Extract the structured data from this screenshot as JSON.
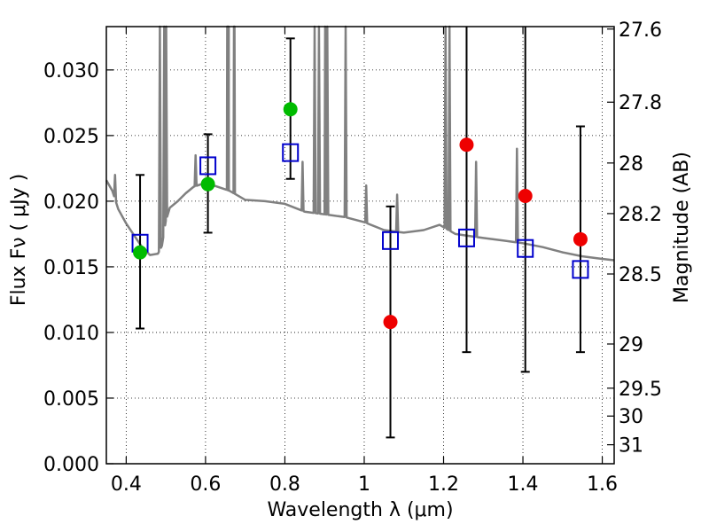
{
  "chart_data": {
    "type": "scatter",
    "xlabel": "Wavelength  λ (μm)",
    "ylabel": "Flux  Fν  ( μJy )",
    "ylabel_right": "Magnitude (AB)",
    "xlim": [
      0.35,
      1.63
    ],
    "ylim": [
      0.0,
      0.0333
    ],
    "x_ticks": [
      0.4,
      0.6,
      0.8,
      1.0,
      1.2,
      1.4,
      1.6
    ],
    "x_tick_labels": [
      "0.4",
      "0.6",
      "0.8",
      "1",
      "1.2",
      "1.4",
      "1.6"
    ],
    "y_ticks": [
      0.0,
      0.005,
      0.01,
      0.015,
      0.02,
      0.025,
      0.03
    ],
    "y_tick_labels": [
      "0.000",
      "0.005",
      "0.010",
      "0.015",
      "0.020",
      "0.025",
      "0.030"
    ],
    "right_ticks": [
      {
        "label": "27.6",
        "mag": 27.6
      },
      {
        "label": "27.8",
        "mag": 27.8
      },
      {
        "label": "28",
        "mag": 28.0
      },
      {
        "label": "28.2",
        "mag": 28.2
      },
      {
        "label": "28.5",
        "mag": 28.5
      },
      {
        "label": "29",
        "mag": 29.0
      },
      {
        "label": "29.5",
        "mag": 29.5
      },
      {
        "label": "30",
        "mag": 30.0
      },
      {
        "label": "31",
        "mag": 31.0
      }
    ],
    "grid": true,
    "colors": {
      "model": "#808080",
      "model_points": "#0000cc",
      "detected": "#00bb00",
      "upper": "#ee0000",
      "errorbar": "#000000"
    },
    "series": [
      {
        "kind": "model_photometry",
        "points": [
          {
            "x": 0.435,
            "y": 0.0168
          },
          {
            "x": 0.606,
            "y": 0.0227
          },
          {
            "x": 0.814,
            "y": 0.0237
          },
          {
            "x": 1.066,
            "y": 0.017
          },
          {
            "x": 1.258,
            "y": 0.0172
          },
          {
            "x": 1.406,
            "y": 0.0164
          },
          {
            "x": 1.545,
            "y": 0.0148
          }
        ]
      },
      {
        "kind": "detections",
        "points": [
          {
            "x": 0.435,
            "y": 0.0161,
            "err_low": 0.0103,
            "err_high": 0.022
          },
          {
            "x": 0.606,
            "y": 0.0213,
            "err_low": 0.0176,
            "err_high": 0.0251
          },
          {
            "x": 0.814,
            "y": 0.027,
            "err_low": 0.0217,
            "err_high": 0.0324
          }
        ]
      },
      {
        "kind": "low_significance",
        "points": [
          {
            "x": 1.066,
            "y": 0.0108,
            "err_low": 0.002,
            "err_high": 0.0196
          },
          {
            "x": 1.258,
            "y": 0.0243,
            "err_low": 0.0085,
            "err_high": 0.0334
          },
          {
            "x": 1.406,
            "y": 0.0204,
            "err_low": 0.007,
            "err_high": 0.0334
          },
          {
            "x": 1.545,
            "y": 0.0171,
            "err_low": 0.0085,
            "err_high": 0.0257
          }
        ]
      }
    ],
    "model_spectrum": {
      "continuum": [
        [
          0.35,
          0.0216
        ],
        [
          0.365,
          0.0208
        ],
        [
          0.38,
          0.0194
        ],
        [
          0.4,
          0.0183
        ],
        [
          0.42,
          0.0174
        ],
        [
          0.44,
          0.0165
        ],
        [
          0.46,
          0.0159
        ],
        [
          0.48,
          0.016
        ],
        [
          0.49,
          0.0166
        ],
        [
          0.5,
          0.0185
        ],
        [
          0.51,
          0.0195
        ],
        [
          0.53,
          0.02
        ],
        [
          0.55,
          0.0206
        ],
        [
          0.57,
          0.0211
        ],
        [
          0.6,
          0.0214
        ],
        [
          0.63,
          0.0211
        ],
        [
          0.66,
          0.0208
        ],
        [
          0.7,
          0.0201
        ],
        [
          0.75,
          0.02
        ],
        [
          0.8,
          0.0198
        ],
        [
          0.85,
          0.0192
        ],
        [
          0.9,
          0.019
        ],
        [
          0.95,
          0.0188
        ],
        [
          1.0,
          0.0184
        ],
        [
          1.05,
          0.0178
        ],
        [
          1.1,
          0.0176
        ],
        [
          1.15,
          0.0178
        ],
        [
          1.19,
          0.0182
        ],
        [
          1.23,
          0.0175
        ],
        [
          1.3,
          0.0172
        ],
        [
          1.35,
          0.017
        ],
        [
          1.4,
          0.0168
        ],
        [
          1.45,
          0.0165
        ],
        [
          1.5,
          0.0161
        ],
        [
          1.55,
          0.0158
        ],
        [
          1.6,
          0.0156
        ],
        [
          1.63,
          0.0155
        ]
      ],
      "lines": [
        {
          "x": 0.372,
          "y": 0.022
        },
        {
          "x": 0.485,
          "y": 0.034
        },
        {
          "x": 0.4959,
          "y": 0.034
        },
        {
          "x": 0.5007,
          "y": 0.034
        },
        {
          "x": 0.575,
          "y": 0.0235
        },
        {
          "x": 0.6548,
          "y": 0.034
        },
        {
          "x": 0.6563,
          "y": 0.034
        },
        {
          "x": 0.6584,
          "y": 0.034
        },
        {
          "x": 0.6717,
          "y": 0.034
        },
        {
          "x": 0.6731,
          "y": 0.034
        },
        {
          "x": 0.8446,
          "y": 0.023
        },
        {
          "x": 0.875,
          "y": 0.034
        },
        {
          "x": 0.886,
          "y": 0.034
        },
        {
          "x": 0.9016,
          "y": 0.034
        },
        {
          "x": 0.9069,
          "y": 0.034
        },
        {
          "x": 0.9531,
          "y": 0.034
        },
        {
          "x": 1.0049,
          "y": 0.0212
        },
        {
          "x": 1.083,
          "y": 0.0205
        },
        {
          "x": 1.205,
          "y": 0.034
        },
        {
          "x": 1.215,
          "y": 0.034
        },
        {
          "x": 1.282,
          "y": 0.023
        },
        {
          "x": 1.385,
          "y": 0.024
        }
      ]
    }
  }
}
